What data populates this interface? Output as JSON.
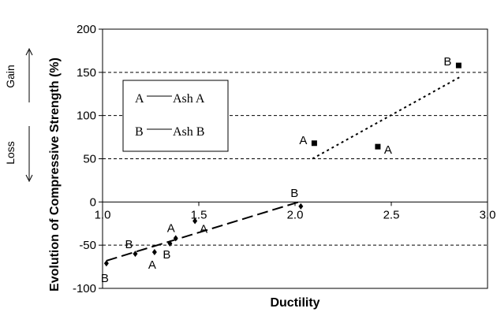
{
  "chart_data": {
    "type": "scatter",
    "xlabel": "Ductility",
    "ylabel": "Evolution of Compressive Strength (%)",
    "xlim": [
      1.0,
      3.0
    ],
    "ylim": [
      -100,
      200
    ],
    "x_ticks": [
      "1.0",
      "1.5",
      "2.0",
      "2.5",
      "3.0"
    ],
    "y_ticks": [
      "-100",
      "-50",
      "0",
      "50",
      "100",
      "150",
      "200"
    ],
    "reference_lines_y": [
      -50,
      50,
      100,
      150
    ],
    "side_labels": {
      "gain": "Gain",
      "loss": "Loss"
    },
    "legend": {
      "entries": [
        {
          "key": "A",
          "name": "Ash A"
        },
        {
          "key": "B",
          "name": "Ash B"
        }
      ]
    },
    "points": [
      {
        "x": 1.02,
        "y": -71,
        "label": "B",
        "marker": "diamond"
      },
      {
        "x": 1.17,
        "y": -60,
        "label": "B",
        "marker": "diamond"
      },
      {
        "x": 1.27,
        "y": -58,
        "label": "A",
        "marker": "diamond"
      },
      {
        "x": 1.35,
        "y": -48,
        "label": "B",
        "marker": "diamond"
      },
      {
        "x": 1.38,
        "y": -42,
        "label": "A",
        "marker": "diamond"
      },
      {
        "x": 1.48,
        "y": -22,
        "label": "A",
        "marker": "diamond"
      },
      {
        "x": 2.03,
        "y": -5,
        "label": "B",
        "marker": "diamond"
      },
      {
        "x": 2.1,
        "y": 68,
        "label": "A",
        "marker": "square"
      },
      {
        "x": 2.43,
        "y": 64,
        "label": "A",
        "marker": "square"
      },
      {
        "x": 2.85,
        "y": 158,
        "label": "B",
        "marker": "square"
      }
    ],
    "trendlines": [
      {
        "style": "long-dash",
        "x": [
          1.02,
          2.02
        ],
        "y": [
          -68,
          0
        ]
      },
      {
        "style": "dotted",
        "x": [
          2.09,
          2.86
        ],
        "y": [
          50,
          145
        ]
      }
    ]
  }
}
